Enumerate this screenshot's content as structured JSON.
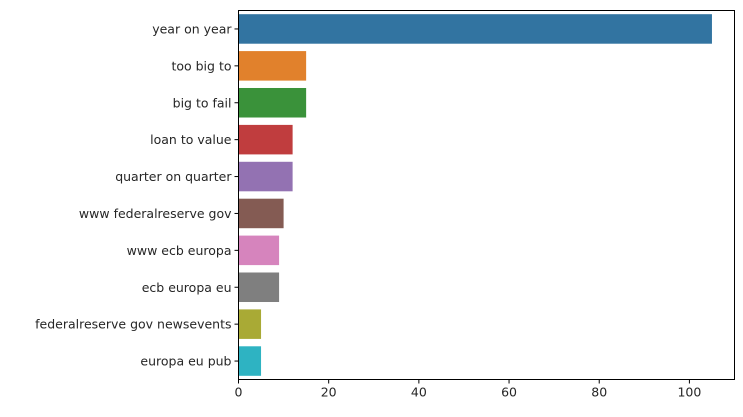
{
  "chart_data": {
    "type": "bar",
    "orientation": "horizontal",
    "title": "",
    "xlabel": "",
    "ylabel": "",
    "grid": false,
    "xlim": [
      0,
      110
    ],
    "xticks": [
      0,
      20,
      40,
      60,
      80,
      100
    ],
    "categories": [
      "year on year",
      "too big to",
      "big to fail",
      "loan to value",
      "quarter on quarter",
      "www federalreserve gov",
      "www ecb europa",
      "ecb europa eu",
      "federalreserve gov newsevents",
      "europa eu pub"
    ],
    "values": [
      105,
      15,
      15,
      12,
      12,
      10,
      9,
      9,
      5,
      5
    ],
    "colors": [
      "#3274a1",
      "#e1812c",
      "#3a923a",
      "#c03d3e",
      "#9372b2",
      "#845b53",
      "#d684bd",
      "#7f7f7f",
      "#a9aa35",
      "#2eb3c2"
    ]
  }
}
